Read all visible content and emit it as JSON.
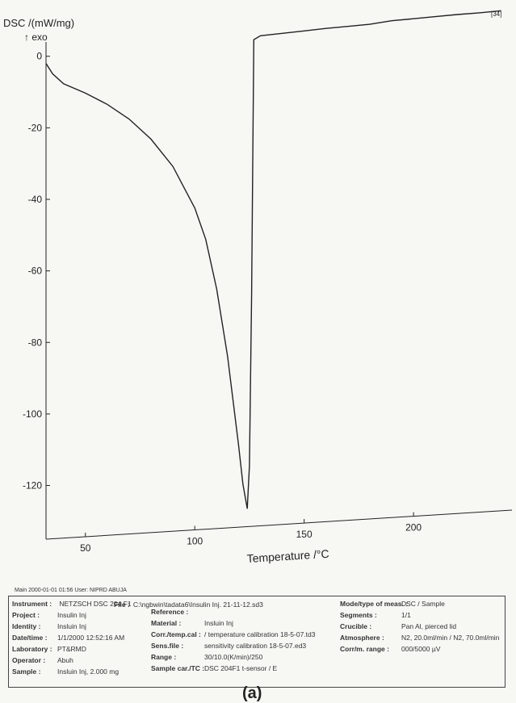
{
  "chart_data": {
    "type": "line",
    "ylabel": "DSC /(mW/mg)",
    "exo_label": "↑ exo",
    "xlabel": "Temperature /°C",
    "corner_label": "[34]",
    "xlim": [
      32,
      245
    ],
    "ylim": [
      -135,
      4
    ],
    "xticks": [
      50,
      100,
      150,
      200
    ],
    "yticks": [
      0,
      -20,
      -40,
      -60,
      -80,
      -100,
      -120
    ],
    "grid": false,
    "series": [
      {
        "x": [
          32,
          35,
          40,
          50,
          60,
          70,
          80,
          90,
          100,
          105,
          110,
          115,
          120,
          122,
          124,
          125,
          126,
          127,
          130,
          140,
          150,
          160,
          170,
          180,
          190,
          200,
          210,
          220,
          230,
          240
        ],
        "y": [
          -2,
          -5,
          -8,
          -11,
          -14.5,
          -19,
          -25,
          -33,
          -45,
          -54,
          -68,
          -87,
          -112,
          -123,
          -130,
          -118,
          -70,
          1,
          2,
          2.3,
          2.6,
          2.9,
          3.1,
          3.3,
          3.9,
          4.1,
          4.3,
          4.5,
          4.6,
          4.8
        ]
      }
    ]
  },
  "info": {
    "header": "Main   2000-01-01 01:56   User: NIPRD ABUJA",
    "instrument": {
      "label": "Instrument :",
      "value": "NETZSCH DSC 204 F1"
    },
    "file": {
      "label": "File :",
      "value": "C:\\ngbwin\\tadata6\\Insulin Inj. 21-11-12.sd3"
    },
    "col1": [
      {
        "label": "Project :",
        "value": "Insulin Inj"
      },
      {
        "label": "Identity :",
        "value": "Insluin Inj"
      },
      {
        "label": "Date/time :",
        "value": "1/1/2000 12:52:16 AM"
      },
      {
        "label": "Laboratory :",
        "value": "PT&RMD"
      },
      {
        "label": "Operator :",
        "value": "Abuh"
      },
      {
        "label": "Sample :",
        "value": "Insluin Inj, 2.000 mg"
      }
    ],
    "col2": [
      {
        "label": "Reference :",
        "value": ""
      },
      {
        "label": "Material :",
        "value": "Insluin Inj"
      },
      {
        "label": "Corr./temp.cal :",
        "value": "/ temperature calibration 18-5-07.td3"
      },
      {
        "label": "Sens.file :",
        "value": "sensitivity calibration 18-5-07.ed3"
      },
      {
        "label": "Range :",
        "value": "30/10.0(K/min)/250"
      },
      {
        "label": "Sample car./TC :",
        "value": "DSC 204F1 t-sensor / E"
      }
    ],
    "col3": [
      {
        "label": "Mode/type of meas. :",
        "value": "DSC / Sample"
      },
      {
        "label": "Segments :",
        "value": "1/1"
      },
      {
        "label": "Crucible :",
        "value": "Pan Al, pierced lid"
      },
      {
        "label": "Atmosphere :",
        "value": "N2, 20.0ml/min / N2, 70.0ml/min"
      },
      {
        "label": "Corr/m. range :",
        "value": "000/5000 µV"
      }
    ]
  },
  "caption": "(a)"
}
